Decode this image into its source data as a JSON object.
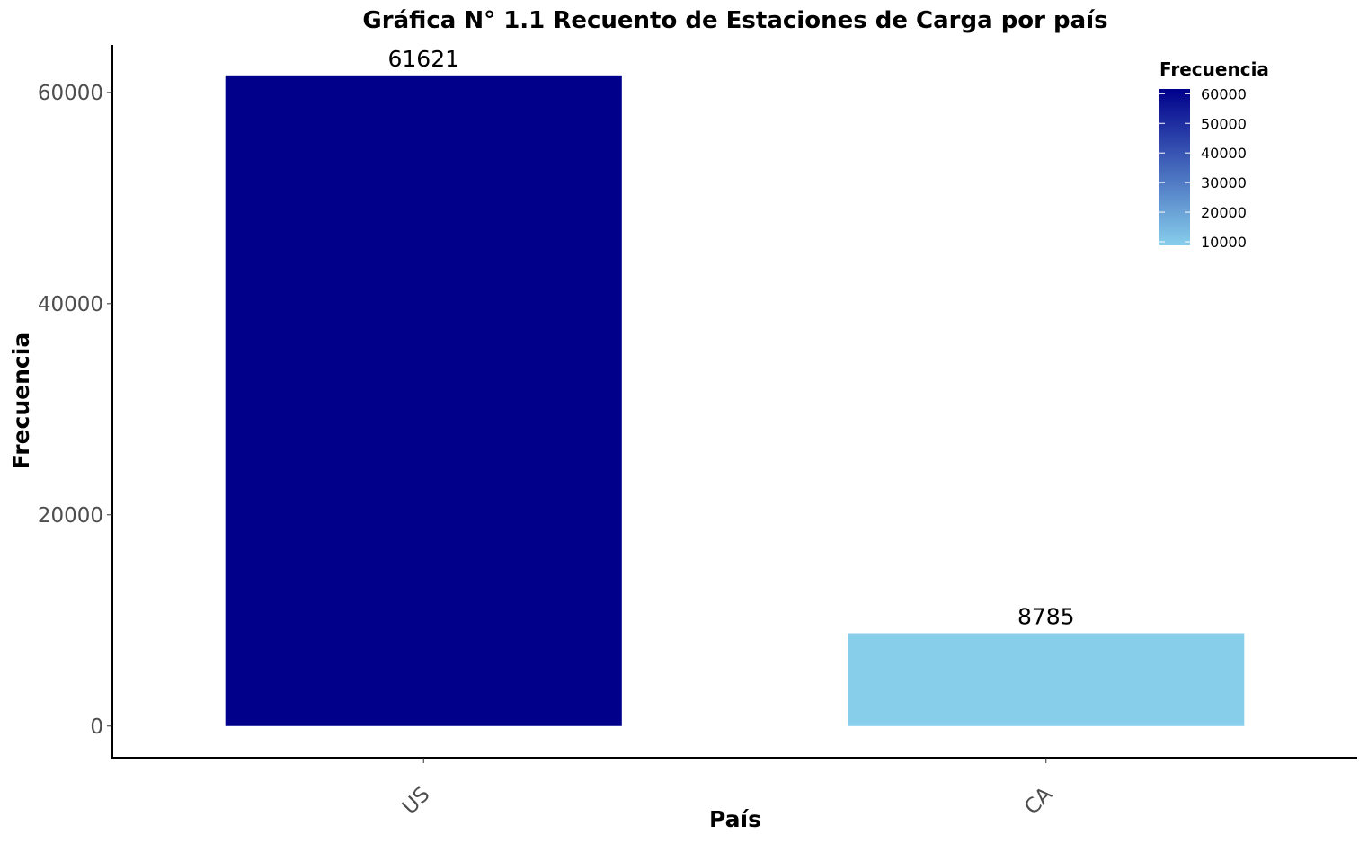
{
  "chart_data": {
    "type": "bar",
    "title": "Gráfica N° 1.1 Recuento de Estaciones de Carga por país",
    "xlabel": "País",
    "ylabel": "Frecuencia",
    "categories": [
      "US",
      "CA"
    ],
    "values": [
      61621,
      8785
    ],
    "data_labels": [
      "61621",
      "8785"
    ],
    "ylim": [
      -3000,
      64500
    ],
    "y_ticks": [
      0,
      20000,
      40000,
      60000
    ],
    "y_tick_labels": [
      "0",
      "20000",
      "40000",
      "60000"
    ],
    "grid": false,
    "bar_colors": [
      "#00008B",
      "#87CEEB"
    ],
    "legend": {
      "title": "Frecuencia",
      "type": "colorbar",
      "placement": "top-right",
      "range": [
        8785,
        61621
      ],
      "color_low": "#87CEEB",
      "color_high": "#00008B",
      "ticks": [
        10000,
        20000,
        30000,
        40000,
        50000,
        60000
      ],
      "tick_labels": [
        "10000",
        "20000",
        "30000",
        "40000",
        "50000",
        "60000"
      ]
    }
  }
}
